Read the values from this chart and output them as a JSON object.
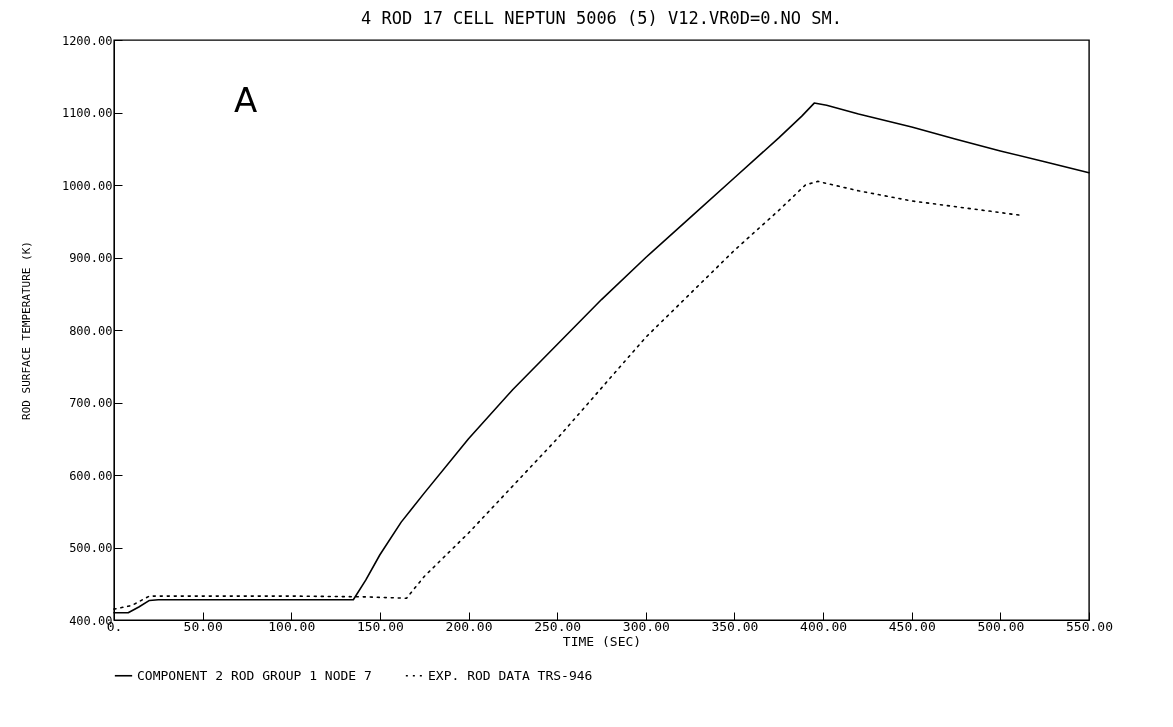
{
  "chart_data": {
    "type": "line",
    "title": "4 ROD 17 CELL NEPTUN 5006 (5) V12.VR0D=0.NO SM.",
    "xlabel": "TIME (SEC)",
    "ylabel": "ROD SURFACE TEMPERATURE   (K)",
    "annotations": [
      "A"
    ],
    "series": [
      {
        "name": "COMPONENT 2 ROD GROUP 1 NODE 7",
        "color": "#000000",
        "line_style": "solid",
        "x": [
          0,
          8,
          14,
          20,
          25,
          60,
          100,
          135,
          142,
          150,
          162,
          175,
          200,
          225,
          250,
          275,
          300,
          325,
          350,
          375,
          388,
          395,
          402,
          420,
          450,
          475,
          500,
          525,
          550
        ],
        "values": [
          410,
          410,
          418,
          427,
          428,
          428,
          428,
          428,
          455,
          490,
          535,
          575,
          650,
          718,
          780,
          842,
          900,
          955,
          1010,
          1065,
          1095,
          1113,
          1110,
          1098,
          1080,
          1063,
          1047,
          1032,
          1017
        ]
      },
      {
        "name": "EXP. ROD DATA TRS-946",
        "color": "#000000",
        "line_style": "dotted",
        "x": [
          0,
          10,
          20,
          60,
          100,
          140,
          165,
          175,
          200,
          225,
          250,
          275,
          300,
          325,
          350,
          375,
          390,
          397,
          420,
          450,
          475,
          500,
          512
        ],
        "values": [
          415,
          420,
          433,
          433,
          433,
          432,
          430,
          460,
          520,
          585,
          650,
          720,
          790,
          850,
          910,
          965,
          1000,
          1005,
          992,
          978,
          970,
          962,
          958
        ]
      }
    ],
    "xlim": [
      0,
      550
    ],
    "xticks": [
      {
        "value": 0,
        "label": "0."
      },
      {
        "value": 50,
        "label": "50.00"
      },
      {
        "value": 100,
        "label": "100.00"
      },
      {
        "value": 150,
        "label": "150.00"
      },
      {
        "value": 200,
        "label": "200.00"
      },
      {
        "value": 250,
        "label": "250.00"
      },
      {
        "value": 300,
        "label": "300.00"
      },
      {
        "value": 350,
        "label": "350.00"
      },
      {
        "value": 400,
        "label": "400.00"
      },
      {
        "value": 450,
        "label": "450.00"
      },
      {
        "value": 500,
        "label": "500.00"
      },
      {
        "value": 550,
        "label": "550.00"
      }
    ],
    "ylim": [
      400,
      1200
    ],
    "yticks": [
      {
        "value": 400,
        "label": "400.00"
      },
      {
        "value": 500,
        "label": "500.00"
      },
      {
        "value": 600,
        "label": "600.00"
      },
      {
        "value": 700,
        "label": "700.00"
      },
      {
        "value": 800,
        "label": "800.00"
      },
      {
        "value": 900,
        "label": "900.00"
      },
      {
        "value": 1000,
        "label": "1000.00"
      },
      {
        "value": 1100,
        "label": "1100.00"
      },
      {
        "value": 1200,
        "label": "1200.00"
      }
    ],
    "grid": false,
    "legend": "bottom"
  }
}
